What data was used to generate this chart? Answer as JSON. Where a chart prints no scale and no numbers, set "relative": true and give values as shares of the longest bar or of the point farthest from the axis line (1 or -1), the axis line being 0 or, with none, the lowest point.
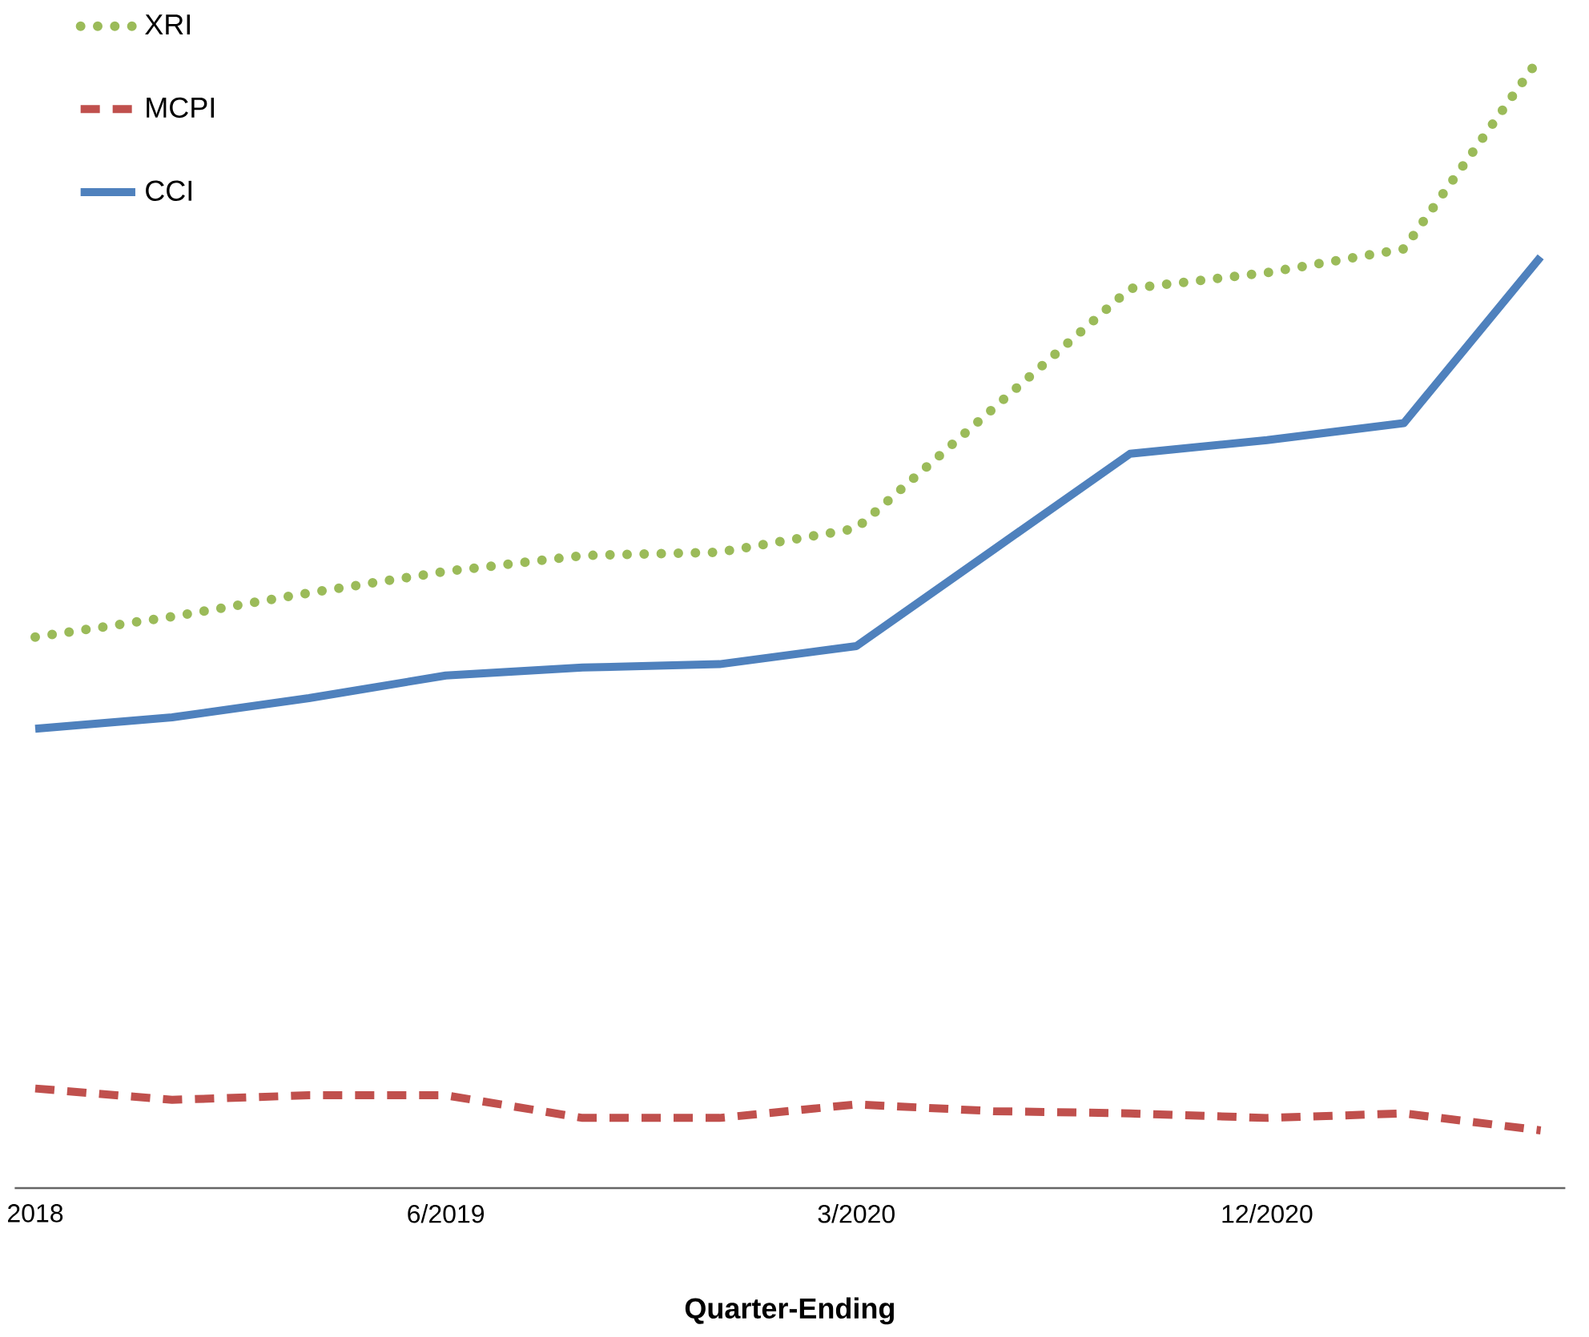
{
  "chart_data": {
    "type": "line",
    "xlabel": "Quarter-Ending",
    "relative": true,
    "legend": "top left",
    "categories": [
      "2018",
      null,
      null,
      "6/2019",
      null,
      null,
      "3/2020",
      null,
      null,
      "12/2020",
      null,
      null
    ],
    "series": [
      {
        "name": "XRI",
        "color": "#9bbb59",
        "line_style": "dotted",
        "values": [
          0.487,
          0.505,
          0.526,
          0.545,
          0.559,
          0.562,
          0.583,
          0.689,
          0.795,
          0.809,
          0.83,
          1.0
        ]
      },
      {
        "name": "MCPI",
        "color": "#c0504d",
        "line_style": "dashed",
        "values": [
          0.088,
          0.078,
          0.082,
          0.082,
          0.062,
          0.062,
          0.074,
          0.068,
          0.066,
          0.062,
          0.066,
          0.051
        ]
      },
      {
        "name": "CCI",
        "color": "#4f81bd",
        "line_style": "solid",
        "values": [
          0.406,
          0.416,
          0.433,
          0.453,
          0.46,
          0.463,
          0.479,
          0.564,
          0.649,
          0.661,
          0.676,
          0.823
        ]
      }
    ]
  }
}
